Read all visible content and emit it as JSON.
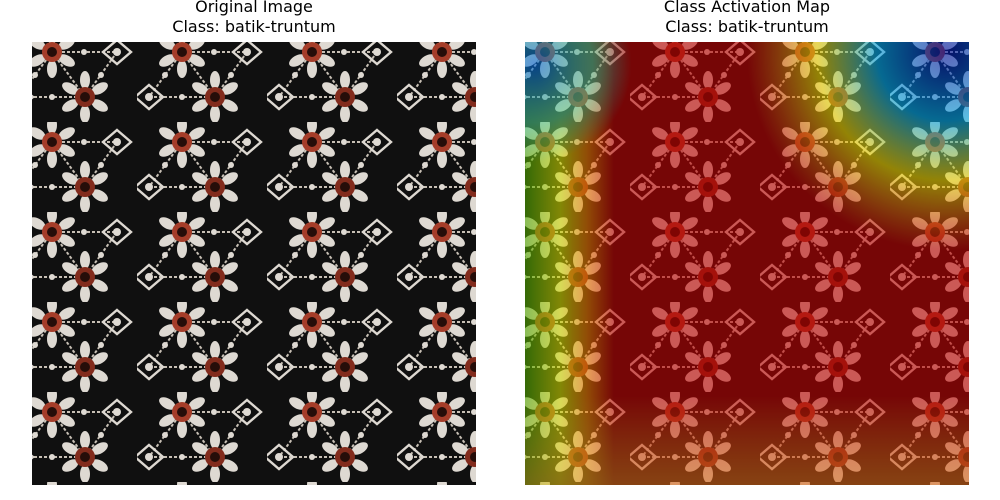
{
  "panels": [
    {
      "title_line1": "Original Image",
      "title_line2": "Class: batik-truntum",
      "image": "batik-truntum-fabric-photo"
    },
    {
      "title_line1": "Class Activation Map",
      "title_line2": "Class: batik-truntum",
      "image": "batik-truntum-fabric-photo-with-jet-heatmap-overlay"
    }
  ],
  "colors": {
    "fabric_background": "#121212",
    "motif_white": "#f1ece4",
    "motif_rust": "#b4432d",
    "heatmap_hot": "#b40000",
    "heatmap_warm": "#e8c020",
    "heatmap_cool": "#1a30c0"
  }
}
